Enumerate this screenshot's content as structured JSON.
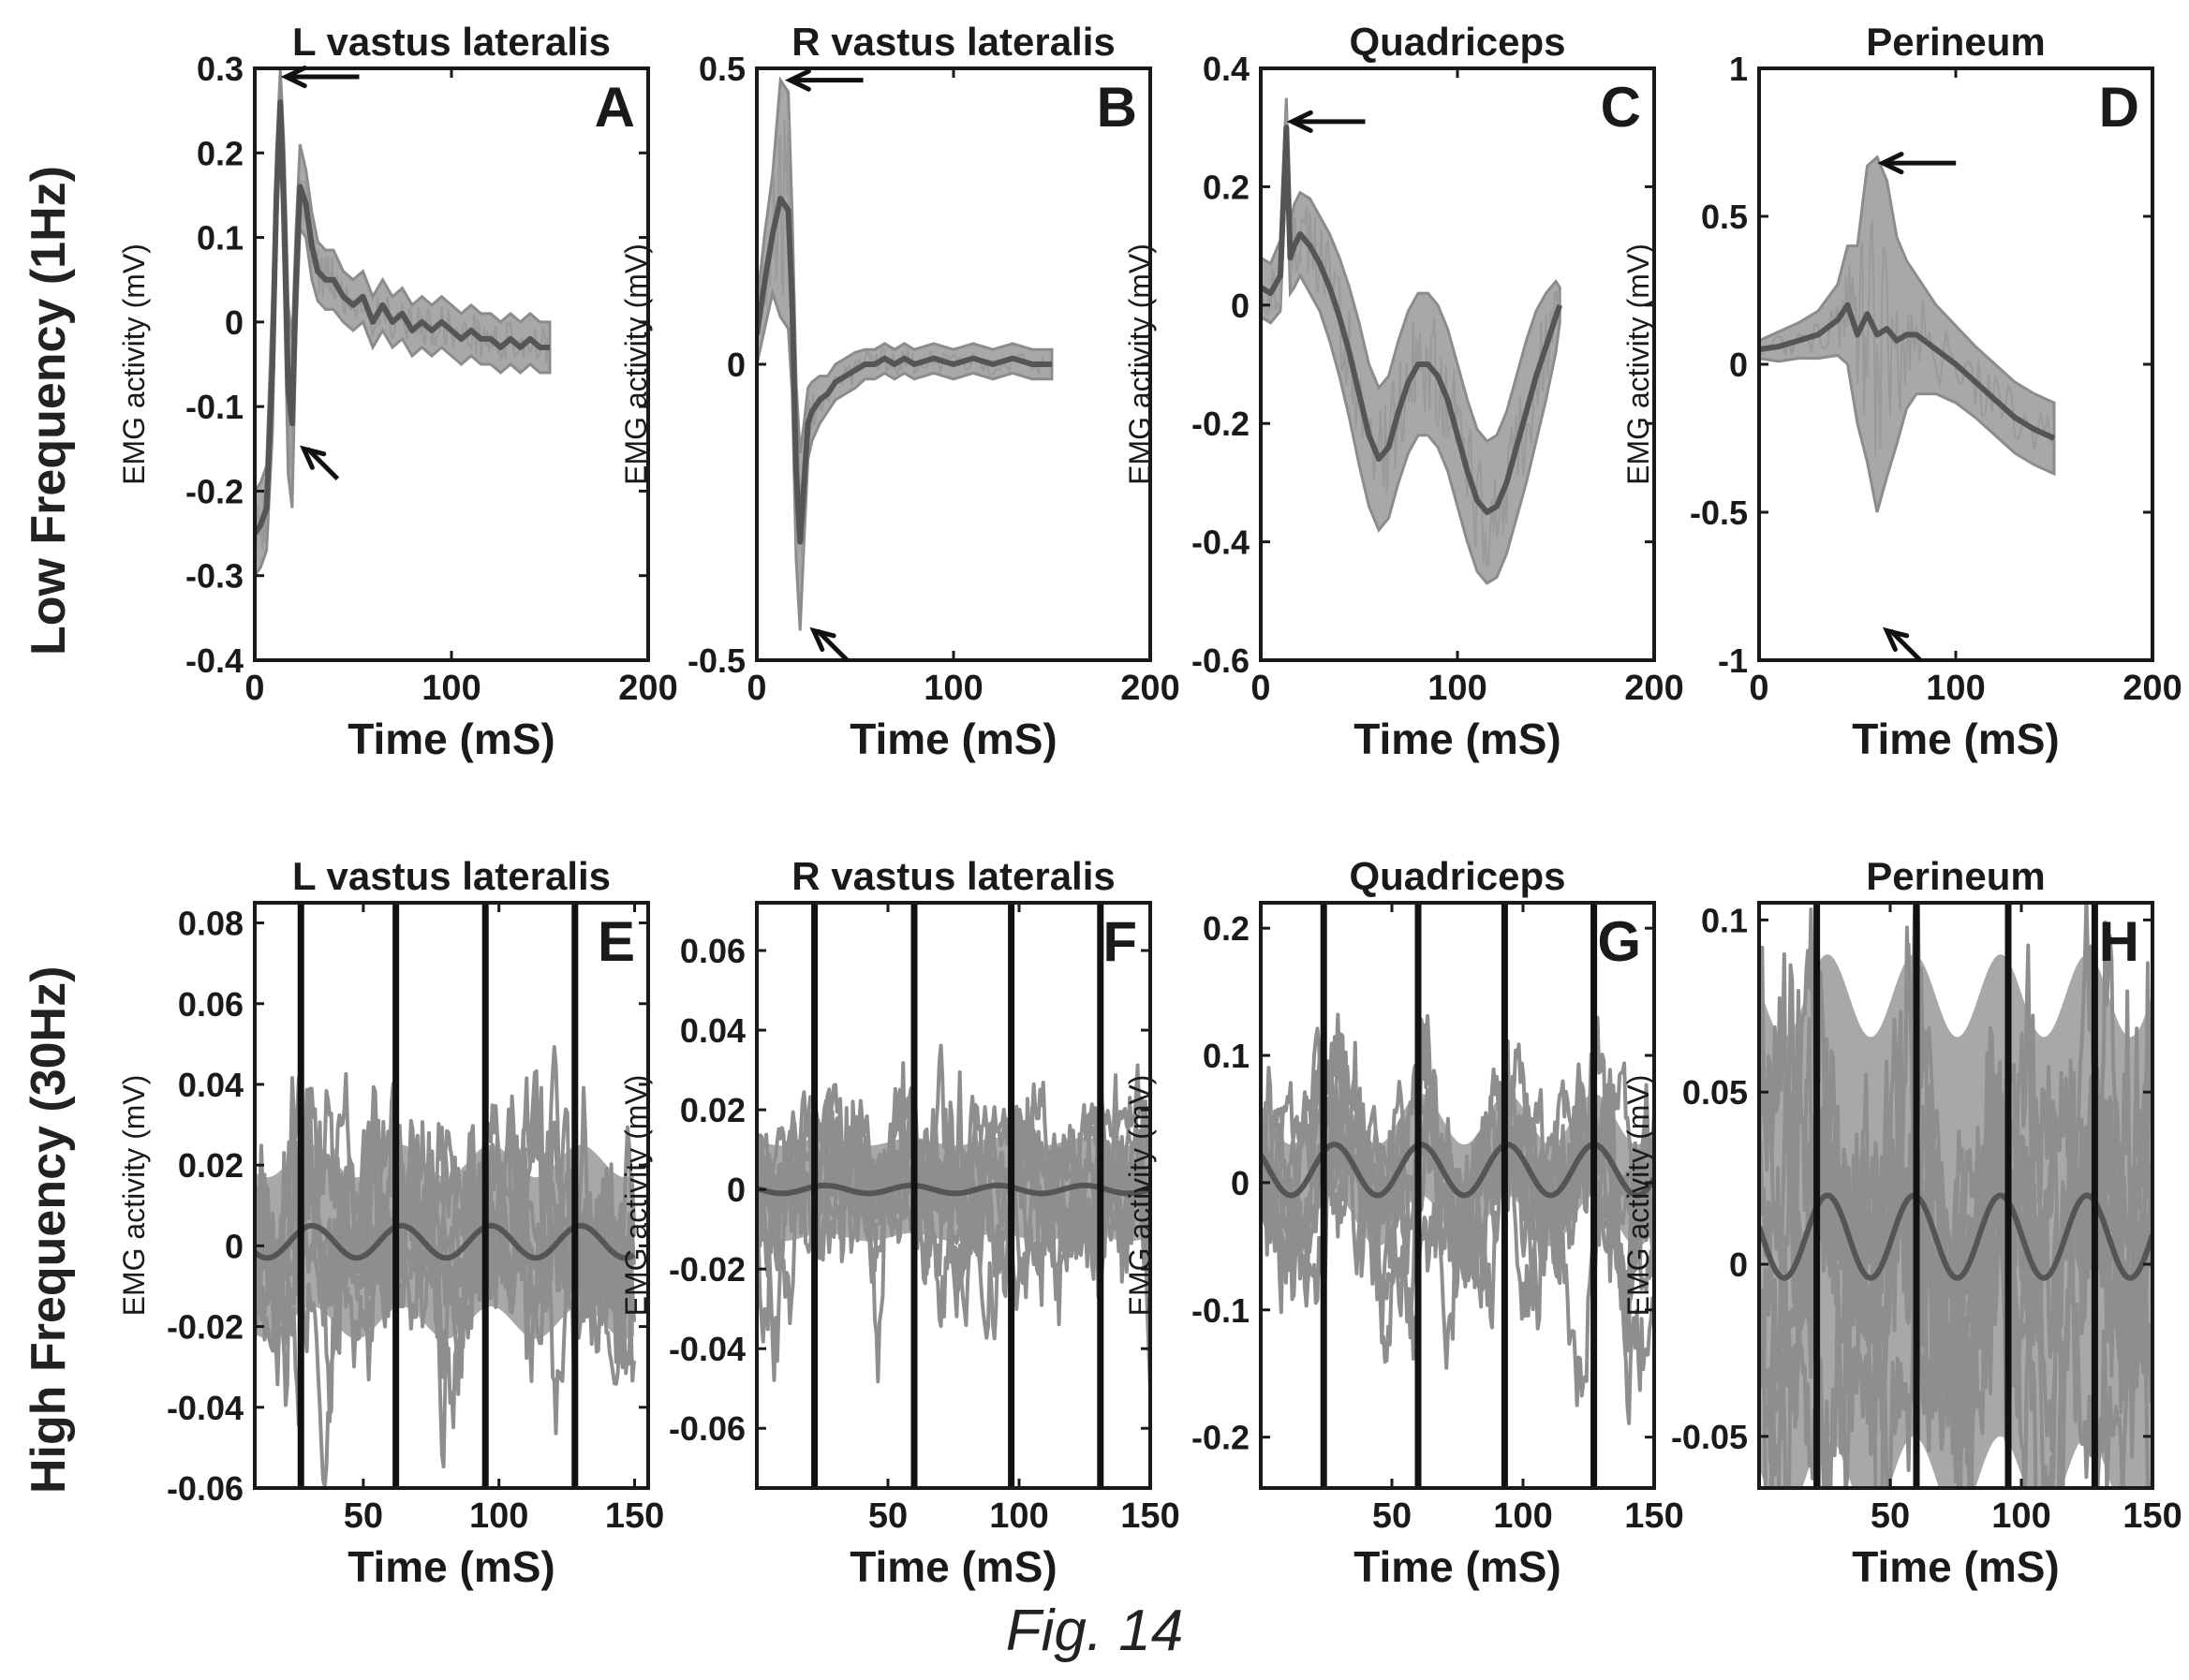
{
  "row_labels": [
    "Low Frequency (1Hz)",
    "High Frequency (30Hz)"
  ],
  "caption": "Fig. 14",
  "colors": {
    "band": "#a8a8a8",
    "band_edge": "#8c8c8c",
    "mean": "#555555",
    "axis": "#1a1a1a",
    "pulse": "#111111"
  },
  "chart_data": [
    {
      "type": "line",
      "panel_letter": "A",
      "title": "L vastus lateralis",
      "xlabel": "Time (mS)",
      "ylabel": "EMG activity (mV)",
      "xlim": [
        0,
        200
      ],
      "ylim": [
        -0.4,
        0.3
      ],
      "xticks": [
        0,
        100,
        200
      ],
      "yticks": [
        -0.4,
        -0.3,
        -0.2,
        -0.1,
        0,
        0.1,
        0.2,
        0.3
      ],
      "series": [
        {
          "x": [
            0,
            3,
            6,
            9,
            11,
            13,
            15,
            17,
            19,
            21,
            23,
            26,
            29,
            32,
            36,
            40,
            45,
            50,
            55,
            60,
            65,
            70,
            75,
            80,
            85,
            90,
            95,
            100,
            105,
            110,
            115,
            120,
            125,
            130,
            135,
            140,
            145,
            150
          ],
          "y": [
            -0.25,
            -0.24,
            -0.22,
            -0.05,
            0.15,
            0.26,
            0.12,
            -0.08,
            -0.12,
            0.05,
            0.16,
            0.14,
            0.09,
            0.06,
            0.05,
            0.05,
            0.03,
            0.02,
            0.03,
            0.0,
            0.02,
            0.0,
            0.01,
            -0.01,
            0.0,
            -0.01,
            0.0,
            -0.01,
            -0.02,
            -0.01,
            -0.02,
            -0.02,
            -0.03,
            -0.02,
            -0.03,
            -0.02,
            -0.03,
            -0.03
          ],
          "band": [
            0.05,
            0.05,
            0.05,
            0.08,
            0.05,
            0.04,
            0.08,
            0.1,
            0.1,
            0.06,
            0.05,
            0.04,
            0.04,
            0.035,
            0.035,
            0.035,
            0.03,
            0.03,
            0.03,
            0.03,
            0.03,
            0.03,
            0.03,
            0.03,
            0.03,
            0.03,
            0.03,
            0.03,
            0.03,
            0.03,
            0.03,
            0.03,
            0.03,
            0.03,
            0.03,
            0.03,
            0.03,
            0.03
          ]
        }
      ],
      "arrows": [
        {
          "x": 15,
          "y": 0.29,
          "dir": "right"
        },
        {
          "x": 24,
          "y": -0.15,
          "dir": "lower-right"
        }
      ]
    },
    {
      "type": "line",
      "panel_letter": "B",
      "title": "R vastus lateralis",
      "xlabel": "Time (mS)",
      "ylabel": "EMG activity (mV)",
      "xlim": [
        0,
        200
      ],
      "ylim": [
        -0.5,
        0.5
      ],
      "xticks": [
        0,
        100,
        200
      ],
      "yticks": [
        -0.5,
        0,
        0.5
      ],
      "series": [
        {
          "x": [
            0,
            4,
            8,
            12,
            16,
            18,
            20,
            22,
            24,
            26,
            28,
            32,
            36,
            40,
            45,
            50,
            55,
            60,
            65,
            70,
            75,
            80,
            90,
            100,
            110,
            120,
            130,
            140,
            150
          ],
          "y": [
            0.05,
            0.14,
            0.22,
            0.28,
            0.26,
            0.1,
            -0.18,
            -0.3,
            -0.2,
            -0.1,
            -0.08,
            -0.06,
            -0.05,
            -0.03,
            -0.02,
            -0.01,
            0.0,
            0.0,
            0.01,
            0.0,
            0.01,
            0.0,
            0.01,
            0.0,
            0.01,
            0.0,
            0.01,
            0.0,
            0.0
          ],
          "band": [
            0.05,
            0.08,
            0.1,
            0.2,
            0.2,
            0.15,
            0.15,
            0.15,
            0.1,
            0.06,
            0.05,
            0.04,
            0.03,
            0.03,
            0.03,
            0.03,
            0.025,
            0.025,
            0.025,
            0.025,
            0.025,
            0.025,
            0.025,
            0.025,
            0.025,
            0.025,
            0.025,
            0.025,
            0.025
          ]
        }
      ],
      "arrows": [
        {
          "x": 16,
          "y": 0.48,
          "dir": "right"
        },
        {
          "x": 28,
          "y": -0.45,
          "dir": "lower-right"
        }
      ]
    },
    {
      "type": "line",
      "panel_letter": "C",
      "title": "Quadriceps",
      "xlabel": "Time (mS)",
      "ylabel": "EMG activity (mV)",
      "xlim": [
        0,
        200
      ],
      "ylim": [
        -0.6,
        0.4
      ],
      "xticks": [
        0,
        100,
        200
      ],
      "yticks": [
        -0.6,
        -0.4,
        -0.2,
        0,
        0.2,
        0.4
      ],
      "series": [
        {
          "x": [
            0,
            5,
            10,
            13,
            15,
            17,
            20,
            25,
            30,
            35,
            40,
            45,
            50,
            55,
            60,
            65,
            70,
            75,
            80,
            85,
            90,
            95,
            100,
            105,
            110,
            115,
            120,
            125,
            130,
            135,
            140,
            145,
            150,
            152
          ],
          "y": [
            0.03,
            0.02,
            0.05,
            0.3,
            0.08,
            0.1,
            0.12,
            0.1,
            0.07,
            0.03,
            -0.02,
            -0.08,
            -0.15,
            -0.22,
            -0.26,
            -0.24,
            -0.18,
            -0.13,
            -0.1,
            -0.1,
            -0.12,
            -0.16,
            -0.22,
            -0.28,
            -0.33,
            -0.35,
            -0.34,
            -0.3,
            -0.24,
            -0.18,
            -0.12,
            -0.07,
            -0.02,
            0.0
          ],
          "band": [
            0.05,
            0.05,
            0.06,
            0.05,
            0.06,
            0.07,
            0.07,
            0.08,
            0.08,
            0.09,
            0.1,
            0.11,
            0.12,
            0.12,
            0.12,
            0.12,
            0.12,
            0.12,
            0.12,
            0.12,
            0.12,
            0.12,
            0.12,
            0.12,
            0.12,
            0.12,
            0.12,
            0.12,
            0.12,
            0.12,
            0.11,
            0.09,
            0.06,
            0.03
          ]
        }
      ],
      "arrows": [
        {
          "x": 15,
          "y": 0.31,
          "dir": "right"
        }
      ]
    },
    {
      "type": "line",
      "panel_letter": "D",
      "title": "Perineum",
      "xlabel": "Time (mS)",
      "ylabel": "EMG activity (mV)",
      "xlim": [
        0,
        200
      ],
      "ylim": [
        -1,
        1
      ],
      "xticks": [
        0,
        100,
        200
      ],
      "yticks": [
        -1,
        -0.5,
        0,
        0.5,
        1
      ],
      "series": [
        {
          "x": [
            0,
            10,
            20,
            30,
            40,
            45,
            50,
            55,
            60,
            65,
            70,
            75,
            80,
            90,
            100,
            110,
            120,
            130,
            140,
            150
          ],
          "y": [
            0.05,
            0.06,
            0.08,
            0.1,
            0.15,
            0.2,
            0.1,
            0.17,
            0.1,
            0.12,
            0.08,
            0.1,
            0.1,
            0.05,
            0.0,
            -0.06,
            -0.12,
            -0.18,
            -0.22,
            -0.25
          ],
          "band": [
            0.03,
            0.05,
            0.06,
            0.08,
            0.12,
            0.2,
            0.3,
            0.5,
            0.6,
            0.5,
            0.35,
            0.25,
            0.2,
            0.15,
            0.13,
            0.12,
            0.12,
            0.12,
            0.12,
            0.12
          ]
        }
      ],
      "arrows": [
        {
          "x": 62,
          "y": 0.68,
          "dir": "right"
        },
        {
          "x": 64,
          "y": -0.9,
          "dir": "lower-right"
        }
      ]
    },
    {
      "type": "line",
      "panel_letter": "E",
      "title": "L vastus lateralis",
      "xlabel": "Time (mS)",
      "ylabel": "EMG activity (mV)",
      "xlim": [
        10,
        155
      ],
      "ylim": [
        -0.06,
        0.085
      ],
      "xticks": [
        50,
        100,
        150
      ],
      "yticks": [
        -0.06,
        -0.04,
        -0.02,
        0,
        0.02,
        0.04,
        0.06,
        0.08
      ],
      "pulse_x": [
        27,
        62,
        95,
        128
      ],
      "mean_amp": 0.004,
      "mean_offset": 0.001,
      "band": 0.02,
      "spread": 0.04,
      "seed": 11
    },
    {
      "type": "line",
      "panel_letter": "F",
      "title": "R vastus lateralis",
      "xlabel": "Time (mS)",
      "ylabel": "EMG activity (mV)",
      "xlim": [
        0,
        150
      ],
      "ylim": [
        -0.075,
        0.072
      ],
      "xticks": [
        50,
        100,
        150
      ],
      "yticks": [
        -0.06,
        -0.04,
        -0.02,
        0,
        0.02,
        0.04,
        0.06
      ],
      "pulse_x": [
        22,
        60,
        97,
        131
      ],
      "mean_amp": 0.001,
      "mean_offset": 0.0,
      "band": 0.012,
      "spread": 0.04,
      "seed": 23
    },
    {
      "type": "line",
      "panel_letter": "G",
      "title": "Quadriceps",
      "xlabel": "Time (mS)",
      "ylabel": "EMG activity (mV)",
      "xlim": [
        0,
        150
      ],
      "ylim": [
        -0.24,
        0.22
      ],
      "xticks": [
        50,
        100,
        150
      ],
      "yticks": [
        -0.2,
        -0.1,
        0,
        0.1,
        0.2
      ],
      "pulse_x": [
        24,
        60,
        93,
        127
      ],
      "mean_amp": 0.02,
      "mean_offset": 0.01,
      "band": 0.04,
      "spread": 0.12,
      "seed": 37
    },
    {
      "type": "line",
      "panel_letter": "H",
      "title": "Perineum",
      "xlabel": "Time (mS)",
      "ylabel": "EMG activity (mV)",
      "xlim": [
        0,
        150
      ],
      "ylim": [
        -0.065,
        0.105
      ],
      "xticks": [
        50,
        100,
        150
      ],
      "yticks": [
        -0.05,
        0,
        0.05,
        0.1
      ],
      "pulse_x": [
        22,
        60,
        95,
        128
      ],
      "mean_amp": 0.012,
      "mean_offset": 0.008,
      "band": 0.07,
      "spread": 0.07,
      "seed": 53
    }
  ]
}
